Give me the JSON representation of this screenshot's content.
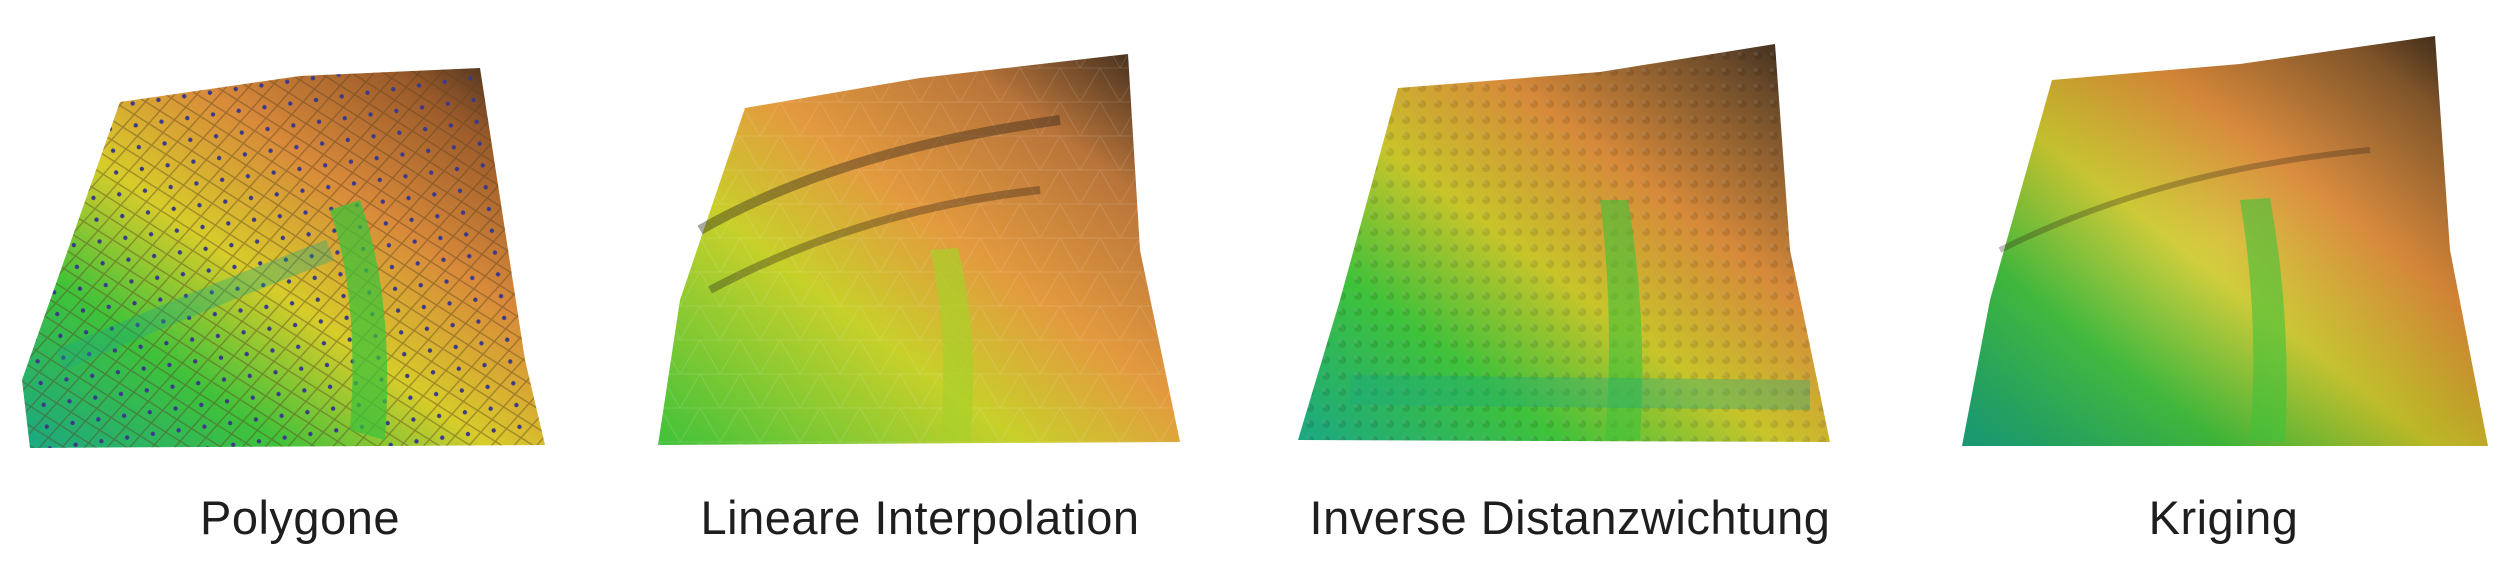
{
  "panels": [
    {
      "id": "polygone",
      "caption": "Polygone"
    },
    {
      "id": "linear",
      "caption": "Lineare Interpolation"
    },
    {
      "id": "idw",
      "caption": "Inverse Distanzwichtung"
    },
    {
      "id": "kriging",
      "caption": "Kriging"
    }
  ],
  "colors": {
    "low": "#1aa884",
    "mid_low": "#3fc23a",
    "mid": "#d7cc2a",
    "high": "#d98a3a",
    "peak": "#3a2a1e",
    "sample_points": "#3b3a8a"
  }
}
